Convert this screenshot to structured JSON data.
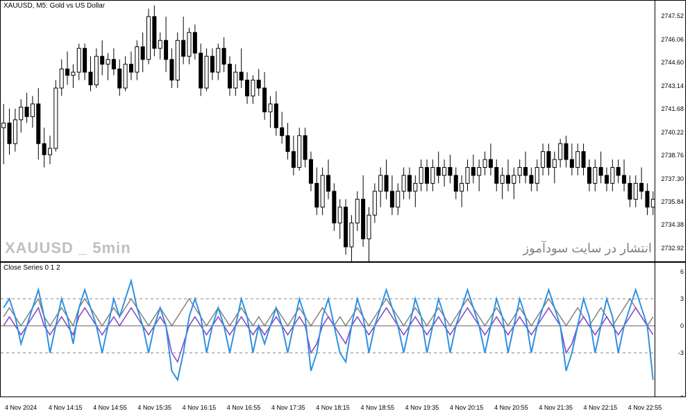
{
  "main_chart": {
    "title": "XAUUSD, M5:  Gold vs US Dollar",
    "watermark": "XAUUSD _ 5min",
    "watermark_rtl": "انتشار در سایت سودآموز",
    "type": "candlestick",
    "background_color": "#ffffff",
    "border_color": "#000000",
    "candle_up_color": "#ffffff",
    "candle_down_color": "#000000",
    "candle_border_color": "#000000",
    "ylim": [
      2732.0,
      2748.5
    ],
    "yticks": [
      2732.92,
      2734.38,
      2735.84,
      2737.3,
      2738.76,
      2740.22,
      2741.68,
      2743.14,
      2744.6,
      2746.06,
      2747.52
    ],
    "candles": [
      {
        "o": 2740.5,
        "h": 2742.0,
        "l": 2738.2,
        "c": 2740.8
      },
      {
        "o": 2740.8,
        "h": 2741.7,
        "l": 2738.8,
        "c": 2739.5
      },
      {
        "o": 2739.5,
        "h": 2741.7,
        "l": 2739.0,
        "c": 2741.0
      },
      {
        "o": 2741.0,
        "h": 2742.3,
        "l": 2740.2,
        "c": 2741.8
      },
      {
        "o": 2741.8,
        "h": 2742.7,
        "l": 2740.8,
        "c": 2741.2
      },
      {
        "o": 2741.2,
        "h": 2742.5,
        "l": 2740.5,
        "c": 2742.0
      },
      {
        "o": 2742.0,
        "h": 2743.0,
        "l": 2738.5,
        "c": 2739.5
      },
      {
        "o": 2739.5,
        "h": 2740.5,
        "l": 2738.0,
        "c": 2738.8
      },
      {
        "o": 2738.8,
        "h": 2740.0,
        "l": 2738.2,
        "c": 2739.2
      },
      {
        "o": 2739.2,
        "h": 2743.5,
        "l": 2739.0,
        "c": 2743.0
      },
      {
        "o": 2743.0,
        "h": 2744.8,
        "l": 2742.5,
        "c": 2744.2
      },
      {
        "o": 2744.2,
        "h": 2745.3,
        "l": 2743.2,
        "c": 2743.8
      },
      {
        "o": 2743.8,
        "h": 2744.5,
        "l": 2743.0,
        "c": 2744.0
      },
      {
        "o": 2744.0,
        "h": 2745.8,
        "l": 2743.5,
        "c": 2745.5
      },
      {
        "o": 2745.5,
        "h": 2745.8,
        "l": 2743.5,
        "c": 2744.0
      },
      {
        "o": 2744.0,
        "h": 2745.0,
        "l": 2742.8,
        "c": 2743.2
      },
      {
        "o": 2743.2,
        "h": 2745.5,
        "l": 2743.0,
        "c": 2745.0
      },
      {
        "o": 2745.0,
        "h": 2746.0,
        "l": 2743.8,
        "c": 2744.5
      },
      {
        "o": 2744.5,
        "h": 2745.2,
        "l": 2743.5,
        "c": 2744.8
      },
      {
        "o": 2744.8,
        "h": 2745.5,
        "l": 2743.8,
        "c": 2744.2
      },
      {
        "o": 2744.2,
        "h": 2744.8,
        "l": 2742.5,
        "c": 2743.0
      },
      {
        "o": 2743.0,
        "h": 2745.0,
        "l": 2742.8,
        "c": 2744.5
      },
      {
        "o": 2744.5,
        "h": 2745.3,
        "l": 2743.5,
        "c": 2744.0
      },
      {
        "o": 2744.0,
        "h": 2746.0,
        "l": 2743.5,
        "c": 2745.6
      },
      {
        "o": 2745.6,
        "h": 2746.5,
        "l": 2744.0,
        "c": 2744.8
      },
      {
        "o": 2744.8,
        "h": 2748.0,
        "l": 2744.5,
        "c": 2747.5
      },
      {
        "o": 2747.5,
        "h": 2748.2,
        "l": 2745.0,
        "c": 2745.5
      },
      {
        "o": 2745.5,
        "h": 2746.5,
        "l": 2744.8,
        "c": 2746.0
      },
      {
        "o": 2746.0,
        "h": 2747.5,
        "l": 2744.0,
        "c": 2744.8
      },
      {
        "o": 2744.8,
        "h": 2745.5,
        "l": 2743.0,
        "c": 2743.5
      },
      {
        "o": 2743.5,
        "h": 2746.5,
        "l": 2743.0,
        "c": 2746.0
      },
      {
        "o": 2746.0,
        "h": 2747.5,
        "l": 2744.5,
        "c": 2745.0
      },
      {
        "o": 2745.0,
        "h": 2746.8,
        "l": 2744.5,
        "c": 2746.5
      },
      {
        "o": 2746.5,
        "h": 2747.0,
        "l": 2744.8,
        "c": 2745.2
      },
      {
        "o": 2745.2,
        "h": 2745.8,
        "l": 2742.5,
        "c": 2743.0
      },
      {
        "o": 2743.0,
        "h": 2745.5,
        "l": 2742.8,
        "c": 2745.0
      },
      {
        "o": 2745.0,
        "h": 2745.5,
        "l": 2743.5,
        "c": 2744.0
      },
      {
        "o": 2744.0,
        "h": 2745.8,
        "l": 2743.5,
        "c": 2745.5
      },
      {
        "o": 2745.5,
        "h": 2746.2,
        "l": 2744.0,
        "c": 2744.5
      },
      {
        "o": 2744.5,
        "h": 2745.0,
        "l": 2742.5,
        "c": 2743.0
      },
      {
        "o": 2743.0,
        "h": 2744.5,
        "l": 2742.5,
        "c": 2744.0
      },
      {
        "o": 2744.0,
        "h": 2745.5,
        "l": 2743.0,
        "c": 2743.5
      },
      {
        "o": 2743.5,
        "h": 2744.0,
        "l": 2742.0,
        "c": 2742.5
      },
      {
        "o": 2742.5,
        "h": 2743.8,
        "l": 2742.0,
        "c": 2743.5
      },
      {
        "o": 2743.5,
        "h": 2744.2,
        "l": 2742.5,
        "c": 2743.0
      },
      {
        "o": 2743.0,
        "h": 2744.0,
        "l": 2741.0,
        "c": 2741.5
      },
      {
        "o": 2741.5,
        "h": 2742.5,
        "l": 2740.5,
        "c": 2742.0
      },
      {
        "o": 2742.0,
        "h": 2742.8,
        "l": 2740.0,
        "c": 2740.5
      },
      {
        "o": 2740.5,
        "h": 2741.5,
        "l": 2739.5,
        "c": 2740.0
      },
      {
        "o": 2740.0,
        "h": 2740.8,
        "l": 2738.5,
        "c": 2739.0
      },
      {
        "o": 2739.0,
        "h": 2740.0,
        "l": 2737.5,
        "c": 2738.0
      },
      {
        "o": 2738.0,
        "h": 2740.5,
        "l": 2737.8,
        "c": 2740.0
      },
      {
        "o": 2740.0,
        "h": 2740.5,
        "l": 2738.0,
        "c": 2738.5
      },
      {
        "o": 2738.5,
        "h": 2739.0,
        "l": 2736.5,
        "c": 2737.0
      },
      {
        "o": 2737.0,
        "h": 2738.0,
        "l": 2735.0,
        "c": 2735.5
      },
      {
        "o": 2735.5,
        "h": 2738.0,
        "l": 2735.0,
        "c": 2737.5
      },
      {
        "o": 2737.5,
        "h": 2738.5,
        "l": 2736.0,
        "c": 2736.5
      },
      {
        "o": 2736.5,
        "h": 2737.0,
        "l": 2734.0,
        "c": 2734.5
      },
      {
        "o": 2734.5,
        "h": 2736.0,
        "l": 2733.5,
        "c": 2735.5
      },
      {
        "o": 2735.5,
        "h": 2736.0,
        "l": 2732.5,
        "c": 2733.0
      },
      {
        "o": 2733.0,
        "h": 2735.0,
        "l": 2732.0,
        "c": 2734.5
      },
      {
        "o": 2734.5,
        "h": 2736.5,
        "l": 2734.0,
        "c": 2736.0
      },
      {
        "o": 2736.0,
        "h": 2737.5,
        "l": 2733.0,
        "c": 2733.5
      },
      {
        "o": 2733.5,
        "h": 2735.5,
        "l": 2732.0,
        "c": 2735.0
      },
      {
        "o": 2735.0,
        "h": 2737.0,
        "l": 2734.5,
        "c": 2736.5
      },
      {
        "o": 2736.5,
        "h": 2738.0,
        "l": 2735.5,
        "c": 2737.5
      },
      {
        "o": 2737.5,
        "h": 2738.5,
        "l": 2736.0,
        "c": 2736.5
      },
      {
        "o": 2736.5,
        "h": 2737.5,
        "l": 2735.0,
        "c": 2735.5
      },
      {
        "o": 2735.5,
        "h": 2737.0,
        "l": 2735.0,
        "c": 2736.5
      },
      {
        "o": 2736.5,
        "h": 2738.0,
        "l": 2736.0,
        "c": 2737.5
      },
      {
        "o": 2737.5,
        "h": 2738.0,
        "l": 2736.0,
        "c": 2736.5
      },
      {
        "o": 2736.5,
        "h": 2737.5,
        "l": 2735.5,
        "c": 2737.0
      },
      {
        "o": 2737.0,
        "h": 2738.5,
        "l": 2736.5,
        "c": 2738.0
      },
      {
        "o": 2738.0,
        "h": 2738.5,
        "l": 2736.5,
        "c": 2737.0
      },
      {
        "o": 2737.0,
        "h": 2738.5,
        "l": 2736.5,
        "c": 2738.0
      },
      {
        "o": 2738.0,
        "h": 2739.0,
        "l": 2737.0,
        "c": 2737.5
      },
      {
        "o": 2737.5,
        "h": 2738.5,
        "l": 2736.8,
        "c": 2738.0
      },
      {
        "o": 2738.0,
        "h": 2738.8,
        "l": 2737.0,
        "c": 2737.5
      },
      {
        "o": 2737.5,
        "h": 2738.0,
        "l": 2736.0,
        "c": 2736.5
      },
      {
        "o": 2736.5,
        "h": 2737.5,
        "l": 2735.5,
        "c": 2737.0
      },
      {
        "o": 2737.0,
        "h": 2738.5,
        "l": 2736.5,
        "c": 2738.0
      },
      {
        "o": 2738.0,
        "h": 2738.8,
        "l": 2737.0,
        "c": 2737.5
      },
      {
        "o": 2737.5,
        "h": 2738.5,
        "l": 2736.5,
        "c": 2738.0
      },
      {
        "o": 2738.0,
        "h": 2739.0,
        "l": 2737.5,
        "c": 2738.5
      },
      {
        "o": 2738.5,
        "h": 2739.5,
        "l": 2737.5,
        "c": 2738.0
      },
      {
        "o": 2738.0,
        "h": 2738.5,
        "l": 2736.5,
        "c": 2737.0
      },
      {
        "o": 2737.0,
        "h": 2738.0,
        "l": 2736.0,
        "c": 2737.5
      },
      {
        "o": 2737.5,
        "h": 2738.5,
        "l": 2736.5,
        "c": 2737.0
      },
      {
        "o": 2737.0,
        "h": 2738.0,
        "l": 2736.0,
        "c": 2737.5
      },
      {
        "o": 2737.5,
        "h": 2738.5,
        "l": 2737.0,
        "c": 2738.0
      },
      {
        "o": 2738.0,
        "h": 2739.0,
        "l": 2737.0,
        "c": 2737.5
      },
      {
        "o": 2737.5,
        "h": 2738.0,
        "l": 2736.5,
        "c": 2737.0
      },
      {
        "o": 2737.0,
        "h": 2738.5,
        "l": 2736.5,
        "c": 2738.0
      },
      {
        "o": 2738.0,
        "h": 2739.5,
        "l": 2737.5,
        "c": 2739.0
      },
      {
        "o": 2739.0,
        "h": 2739.5,
        "l": 2737.5,
        "c": 2738.0
      },
      {
        "o": 2738.0,
        "h": 2739.0,
        "l": 2737.0,
        "c": 2738.5
      },
      {
        "o": 2738.5,
        "h": 2739.8,
        "l": 2738.0,
        "c": 2739.5
      },
      {
        "o": 2739.5,
        "h": 2740.0,
        "l": 2738.0,
        "c": 2738.5
      },
      {
        "o": 2738.5,
        "h": 2739.5,
        "l": 2737.5,
        "c": 2738.0
      },
      {
        "o": 2738.0,
        "h": 2739.5,
        "l": 2737.5,
        "c": 2739.0
      },
      {
        "o": 2739.0,
        "h": 2739.5,
        "l": 2737.5,
        "c": 2738.0
      },
      {
        "o": 2738.0,
        "h": 2738.5,
        "l": 2736.5,
        "c": 2737.0
      },
      {
        "o": 2737.0,
        "h": 2738.5,
        "l": 2736.5,
        "c": 2738.0
      },
      {
        "o": 2738.0,
        "h": 2739.0,
        "l": 2737.0,
        "c": 2737.5
      },
      {
        "o": 2737.5,
        "h": 2738.0,
        "l": 2736.5,
        "c": 2737.0
      },
      {
        "o": 2737.0,
        "h": 2738.5,
        "l": 2736.5,
        "c": 2738.0
      },
      {
        "o": 2738.0,
        "h": 2738.5,
        "l": 2737.0,
        "c": 2737.5
      },
      {
        "o": 2737.5,
        "h": 2738.5,
        "l": 2736.5,
        "c": 2737.0
      },
      {
        "o": 2737.0,
        "h": 2737.5,
        "l": 2735.5,
        "c": 2736.0
      },
      {
        "o": 2736.0,
        "h": 2737.5,
        "l": 2735.5,
        "c": 2737.0
      },
      {
        "o": 2737.0,
        "h": 2738.0,
        "l": 2736.0,
        "c": 2736.5
      },
      {
        "o": 2736.5,
        "h": 2737.0,
        "l": 2735.0,
        "c": 2735.5
      },
      {
        "o": 2735.5,
        "h": 2736.5,
        "l": 2735.0,
        "c": 2736.0
      }
    ],
    "xticks": [
      "4 Nov 2024",
      "4 Nov 14:15",
      "4 Nov 14:55",
      "4 Nov 15:35",
      "4 Nov 16:15",
      "4 Nov 16:55",
      "4 Nov 17:35",
      "4 Nov 18:15",
      "4 Nov 18:55",
      "4 Nov 19:35",
      "4 Nov 20:15",
      "4 Nov 20:55",
      "4 Nov 21:35",
      "4 Nov 22:15",
      "4 Nov 22:55"
    ]
  },
  "indicator_chart": {
    "title": "Close Series 0 1 2",
    "type": "line",
    "background_color": "#ffffff",
    "ylim": [
      -8,
      7
    ],
    "yticks": [
      -8,
      -3,
      0,
      3,
      6
    ],
    "dashed_lines": [
      -3,
      3
    ],
    "zero_line": 0,
    "series": [
      {
        "color": "#808080",
        "width": 1.5,
        "values": [
          1,
          2,
          1,
          0,
          1,
          2,
          3,
          1,
          0,
          1,
          2,
          1,
          0,
          2,
          3,
          2,
          1,
          0,
          1,
          2,
          1,
          2,
          3,
          2,
          1,
          0,
          1,
          2,
          1,
          0,
          1,
          2,
          3,
          2,
          1,
          0,
          1,
          2,
          1,
          0,
          1,
          2,
          1,
          0,
          1,
          0,
          1,
          2,
          1,
          0,
          1,
          2,
          1,
          0,
          1,
          2,
          1,
          0,
          1,
          0,
          1,
          2,
          1,
          0,
          1,
          2,
          3,
          2,
          1,
          0,
          1,
          2,
          1,
          0,
          1,
          2,
          1,
          0,
          1,
          2,
          3,
          2,
          1,
          0,
          1,
          2,
          1,
          0,
          1,
          2,
          1,
          0,
          1,
          2,
          3,
          2,
          1,
          0,
          1,
          2,
          1,
          0,
          1,
          2,
          1,
          0,
          1,
          2,
          3,
          2,
          1,
          0,
          1
        ]
      },
      {
        "color": "#8040c0",
        "width": 1.5,
        "values": [
          0,
          1,
          0,
          -1,
          0,
          1,
          2,
          0,
          -1,
          0,
          1,
          0,
          -1,
          1,
          2,
          1,
          0,
          -1,
          0,
          1,
          0,
          1,
          2,
          1,
          0,
          -1,
          0,
          1,
          0,
          -3,
          -4,
          -2,
          0,
          1,
          0,
          -1,
          0,
          1,
          0,
          -1,
          0,
          1,
          0,
          -1,
          0,
          -1,
          0,
          1,
          0,
          -1,
          0,
          1,
          0,
          -3,
          -2,
          0,
          1,
          0,
          -1,
          -2,
          0,
          1,
          0,
          -1,
          0,
          1,
          2,
          1,
          0,
          -1,
          0,
          1,
          0,
          -1,
          0,
          1,
          0,
          -1,
          0,
          1,
          2,
          1,
          0,
          -1,
          0,
          1,
          0,
          -1,
          0,
          1,
          0,
          -1,
          0,
          1,
          2,
          1,
          0,
          -3,
          -2,
          0,
          1,
          0,
          -1,
          0,
          1,
          0,
          -1,
          0,
          1,
          2,
          1,
          0,
          -1
        ]
      },
      {
        "color": "#3090e0",
        "width": 2,
        "values": [
          2,
          3,
          1,
          -2,
          0,
          2,
          4,
          1,
          -3,
          0,
          3,
          1,
          -2,
          2,
          4,
          2,
          0,
          -3,
          0,
          3,
          1,
          3,
          5,
          2,
          0,
          -3,
          0,
          2,
          0,
          -5,
          -6,
          -3,
          1,
          3,
          1,
          -3,
          0,
          2,
          0,
          -3,
          0,
          3,
          1,
          -3,
          0,
          -2,
          0,
          2,
          0,
          -3,
          0,
          3,
          1,
          -5,
          -3,
          1,
          3,
          0,
          -3,
          -4,
          0,
          3,
          1,
          -3,
          0,
          2,
          4,
          2,
          0,
          -3,
          0,
          3,
          1,
          -3,
          0,
          3,
          1,
          -3,
          0,
          2,
          4,
          2,
          0,
          -3,
          0,
          3,
          1,
          -3,
          0,
          3,
          1,
          -3,
          0,
          2,
          4,
          2,
          0,
          -5,
          -3,
          0,
          3,
          1,
          -3,
          0,
          3,
          1,
          -3,
          0,
          2,
          4,
          2,
          0,
          -6
        ]
      }
    ]
  }
}
